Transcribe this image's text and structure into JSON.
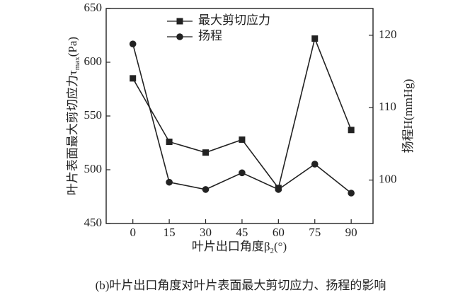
{
  "chart_data": {
    "type": "line",
    "y_label": "叶片表面最大剪切应力τ",
    "y_label_sub": "max",
    "y_label_unit": "(Pa)",
    "y2_label": "扬程H(mmHg)",
    "x_label": "叶片出口角度β",
    "x_label_sub": "2",
    "x_label_unit": "(°)",
    "caption": "(b)叶片出口角度对叶片表面最大剪切应力、扬程的影响",
    "x": [
      0,
      15,
      30,
      45,
      60,
      75,
      90
    ],
    "xlim": [
      -11,
      99
    ],
    "xticks": [
      0,
      15,
      30,
      45,
      60,
      75,
      90
    ],
    "ylim": [
      450,
      650
    ],
    "yticks": [
      450,
      500,
      550,
      600,
      650
    ],
    "y2lim": [
      94,
      123.7
    ],
    "y2ticks": [
      100,
      110,
      120
    ],
    "legend": "upper-left",
    "series": [
      {
        "name": "最大剪切应力",
        "color": "#222222",
        "marker": "square",
        "values": [
          585,
          526,
          516,
          528,
          483,
          622,
          537
        ]
      },
      {
        "name": "扬程",
        "color": "#222222",
        "marker": "circle",
        "axis": "y2",
        "values": [
          118.8,
          99.7,
          98.7,
          101,
          98.7,
          102.2,
          98.2
        ]
      }
    ]
  }
}
